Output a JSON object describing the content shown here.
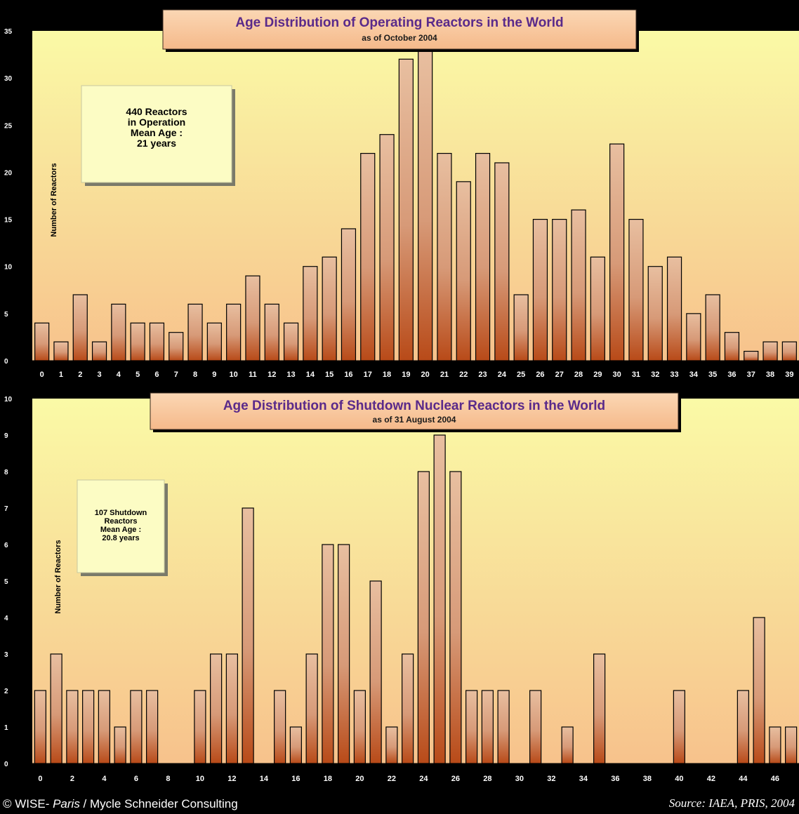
{
  "chart_data": [
    {
      "type": "bar",
      "title": "Age Distribution of Operating Reactors in the World",
      "subtitle": "as of October 2004",
      "ylabel": "Number of Reactors",
      "xlabel": "",
      "ylim": [
        0,
        35
      ],
      "yticks": [
        0,
        5,
        10,
        15,
        20,
        25,
        30,
        35
      ],
      "grid": false,
      "categories": [
        "0",
        "1",
        "2",
        "3",
        "4",
        "5",
        "6",
        "7",
        "8",
        "9",
        "10",
        "11",
        "12",
        "13",
        "14",
        "15",
        "16",
        "17",
        "18",
        "19",
        "20",
        "21",
        "22",
        "23",
        "24",
        "25",
        "26",
        "27",
        "28",
        "29",
        "30",
        "31",
        "32",
        "33",
        "34",
        "35",
        "36",
        "37",
        "38",
        "39"
      ],
      "values": [
        4,
        2,
        7,
        2,
        6,
        4,
        4,
        3,
        6,
        4,
        6,
        9,
        6,
        4,
        10,
        11,
        14,
        22,
        24,
        32,
        33,
        22,
        19,
        22,
        21,
        7,
        15,
        15,
        16,
        11,
        23,
        15,
        10,
        11,
        5,
        7,
        3,
        1,
        2,
        2
      ],
      "annotation": [
        "440 Reactors",
        "in Operation",
        "Mean Age :",
        "21 years"
      ],
      "colors": {
        "bar_top": "#e8bfa0",
        "bar_bottom": "#b84a18",
        "bg_top": "#fafaa6",
        "bg_bottom": "#f7c28c"
      }
    },
    {
      "type": "bar",
      "title": "Age Distribution of Shutdown Nuclear Reactors in the World",
      "subtitle": "as of 31 August 2004",
      "ylabel": "Number of Reactors",
      "xlabel": "",
      "ylim": [
        0,
        10
      ],
      "yticks": [
        0,
        1,
        2,
        3,
        4,
        5,
        6,
        7,
        8,
        9,
        10
      ],
      "grid": false,
      "categories": [
        "0",
        "1",
        "2",
        "3",
        "4",
        "5",
        "6",
        "7",
        "8",
        "9",
        "10",
        "11",
        "12",
        "13",
        "14",
        "15",
        "16",
        "17",
        "18",
        "19",
        "20",
        "21",
        "22",
        "23",
        "24",
        "25",
        "26",
        "27",
        "28",
        "29",
        "30",
        "31",
        "32",
        "33",
        "34",
        "35",
        "36",
        "37",
        "38",
        "39",
        "40",
        "41",
        "42",
        "43",
        "44",
        "45",
        "46",
        "47"
      ],
      "xtick_labels": [
        "0",
        "2",
        "4",
        "6",
        "8",
        "10",
        "12",
        "14",
        "16",
        "18",
        "20",
        "22",
        "24",
        "26",
        "28",
        "30",
        "32",
        "34",
        "36",
        "38",
        "40",
        "42",
        "44",
        "46"
      ],
      "values": [
        2,
        3,
        2,
        2,
        2,
        1,
        2,
        2,
        0,
        0,
        2,
        3,
        3,
        7,
        0,
        2,
        1,
        3,
        6,
        6,
        2,
        5,
        1,
        3,
        8,
        9,
        8,
        2,
        2,
        2,
        0,
        2,
        0,
        1,
        0,
        3,
        0,
        0,
        0,
        0,
        2,
        0,
        0,
        0,
        2,
        4,
        1,
        1
      ],
      "annotation": [
        "107 Shutdown",
        "Reactors",
        "Mean Age :",
        "20.8 years"
      ],
      "colors": {
        "bar_top": "#e8bfa0",
        "bar_bottom": "#b84a18",
        "bg_top": "#fafaa6",
        "bg_bottom": "#f7c28c"
      }
    }
  ],
  "footer": {
    "left_prefix": "© WISE- ",
    "left_italic": "Paris",
    "left_suffix": " / Mycle Schneider Consulting",
    "source": "Source: IAEA, PRIS, 2004"
  }
}
